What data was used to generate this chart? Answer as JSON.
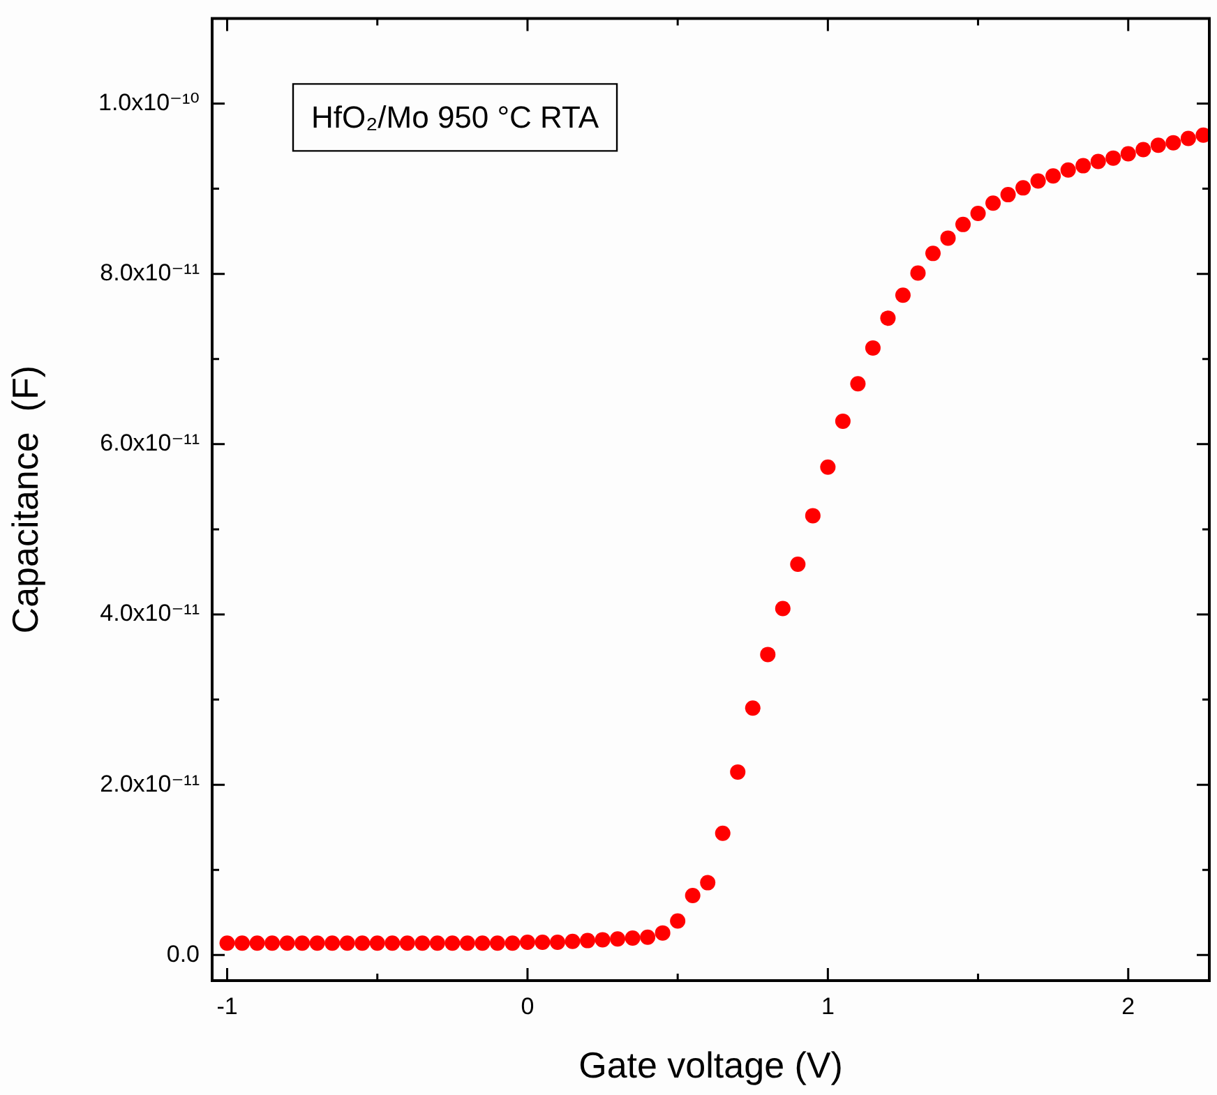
{
  "chart_data": {
    "type": "scatter",
    "xlabel": "Gate voltage (V)",
    "ylabel": "Capacitance  (F)",
    "annotations": [
      "HfO₂/Mo 950 °C RTA"
    ],
    "marker": "circle",
    "grid": false,
    "legend": false,
    "xlim": [
      -1.05,
      2.27
    ],
    "ylim": [
      -3e-12,
      1.1e-10
    ],
    "xticks": [
      -1,
      {
        "value": -0.5,
        "label": null
      },
      0,
      {
        "value": 0.5,
        "label": null
      },
      1,
      {
        "value": 1.5,
        "label": null
      },
      2
    ],
    "yticks": [
      {
        "value": 0,
        "label": "0.0"
      },
      {
        "value": 1e-11,
        "label": null
      },
      {
        "value": 2e-11,
        "label": "2.0x10⁻¹¹"
      },
      {
        "value": 3e-11,
        "label": null
      },
      {
        "value": 4e-11,
        "label": "4.0x10⁻¹¹"
      },
      {
        "value": 5e-11,
        "label": null
      },
      {
        "value": 6e-11,
        "label": "6.0x10⁻¹¹"
      },
      {
        "value": 7e-11,
        "label": null
      },
      {
        "value": 8e-11,
        "label": "8.0x10⁻¹¹"
      },
      {
        "value": 9e-11,
        "label": null
      },
      {
        "value": 1e-10,
        "label": "1.0x10⁻¹⁰"
      }
    ],
    "series": [
      {
        "color": "#ff0000",
        "x": [
          -1,
          -0.95,
          -0.9,
          -0.85,
          -0.8,
          -0.75,
          -0.7,
          -0.65,
          -0.6,
          -0.55,
          -0.5,
          -0.45,
          -0.4,
          -0.35,
          -0.3,
          -0.25,
          -0.2,
          -0.15,
          -0.1,
          -0.05,
          0,
          0.05,
          0.1,
          0.15,
          0.2,
          0.25,
          0.3,
          0.35,
          0.4,
          0.45,
          0.5,
          0.55,
          0.6,
          0.65,
          0.7,
          0.75,
          0.8,
          0.85,
          0.9,
          0.95,
          1,
          1.05,
          1.1,
          1.15,
          1.2,
          1.25,
          1.3,
          1.35,
          1.4,
          1.45,
          1.5,
          1.55,
          1.6,
          1.65,
          1.7,
          1.75,
          1.8,
          1.85,
          1.9,
          1.95,
          2,
          2.05,
          2.1,
          2.15,
          2.2,
          2.25
        ],
        "values": [
          1.4e-12,
          1.4e-12,
          1.4e-12,
          1.4e-12,
          1.4e-12,
          1.4e-12,
          1.4e-12,
          1.4e-12,
          1.4e-12,
          1.4e-12,
          1.4e-12,
          1.4e-12,
          1.4e-12,
          1.4e-12,
          1.4e-12,
          1.4e-12,
          1.4e-12,
          1.4e-12,
          1.4e-12,
          1.4e-12,
          1.5e-12,
          1.5e-12,
          1.5e-12,
          1.6e-12,
          1.7e-12,
          1.8e-12,
          1.9e-12,
          2e-12,
          2.1e-12,
          2.6e-12,
          4e-12,
          7e-12,
          8.5e-12,
          1.43e-11,
          2.15e-11,
          2.9e-11,
          3.53e-11,
          4.07e-11,
          4.59e-11,
          5.16e-11,
          5.73e-11,
          6.27e-11,
          6.71e-11,
          7.13e-11,
          7.48e-11,
          7.75e-11,
          8.01e-11,
          8.24e-11,
          8.42e-11,
          8.58e-11,
          8.71e-11,
          8.83e-11,
          8.93e-11,
          9.01e-11,
          9.09e-11,
          9.15e-11,
          9.22e-11,
          9.27e-11,
          9.32e-11,
          9.36e-11,
          9.41e-11,
          9.46e-11,
          9.51e-11,
          9.54e-11,
          9.59e-11,
          9.63e-11
        ]
      }
    ]
  }
}
